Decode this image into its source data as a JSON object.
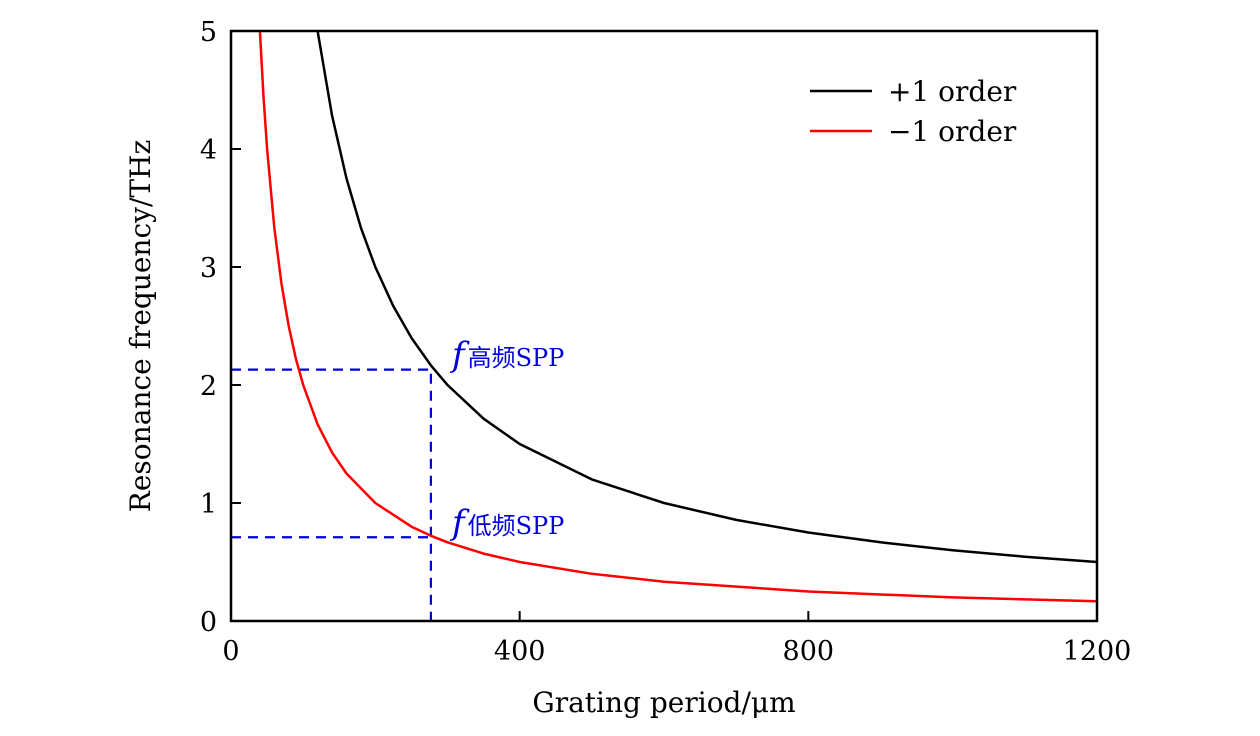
{
  "chart_data": {
    "type": "line",
    "title": "",
    "xlabel": "Grating period/μm",
    "ylabel": "Resonance frequency/THz",
    "xlim": [
      0,
      1200
    ],
    "ylim": [
      0,
      5
    ],
    "xticks": [
      0,
      400,
      800,
      1200
    ],
    "yticks": [
      0,
      1,
      2,
      3,
      4,
      5
    ],
    "xtick_labels": [
      "0",
      "400",
      "800",
      "1200"
    ],
    "ytick_labels": [
      "0",
      "1",
      "2",
      "3",
      "4",
      "5"
    ],
    "grid": false,
    "legend_position": "top-right",
    "series": [
      {
        "name": "+1 order",
        "color": "#000000",
        "x": [
          120,
          140,
          160,
          180,
          200,
          225,
          250,
          277,
          300,
          350,
          400,
          500,
          600,
          700,
          800,
          900,
          1000,
          1100,
          1200
        ],
        "y": [
          5.0,
          4.286,
          3.75,
          3.333,
          3.0,
          2.667,
          2.4,
          2.166,
          2.0,
          1.714,
          1.5,
          1.2,
          1.0,
          0.857,
          0.75,
          0.667,
          0.6,
          0.545,
          0.5
        ]
      },
      {
        "name": "−1 order",
        "color": "#ff0000",
        "x": [
          40,
          45,
          50,
          60,
          70,
          80,
          90,
          100,
          120,
          140,
          160,
          200,
          250,
          277,
          300,
          350,
          400,
          500,
          600,
          800,
          1000,
          1200
        ],
        "y": [
          5.0,
          4.444,
          4.0,
          3.333,
          2.857,
          2.5,
          2.222,
          2.0,
          1.667,
          1.429,
          1.25,
          1.0,
          0.8,
          0.722,
          0.667,
          0.571,
          0.5,
          0.4,
          0.333,
          0.25,
          0.2,
          0.167
        ]
      }
    ],
    "annotations": [
      {
        "label_f": "f",
        "label_sub": "高频SPP",
        "x": 277,
        "y": 2.13,
        "color": "#0000dd"
      },
      {
        "label_f": "f",
        "label_sub": "低频SPP",
        "x": 277,
        "y": 0.71,
        "color": "#0000dd"
      }
    ]
  }
}
